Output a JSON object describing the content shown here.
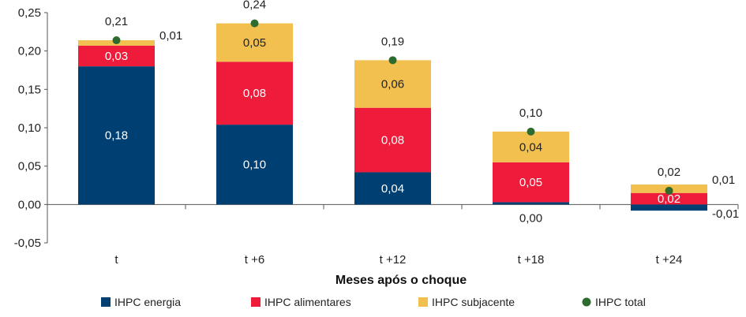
{
  "chart_data": {
    "type": "bar",
    "stacked": true,
    "categories": [
      "t",
      "t +6",
      "t +12",
      "t +18",
      "t +24"
    ],
    "series": [
      {
        "name": "IHPC energia",
        "color": "#003f72",
        "values": [
          0.18,
          0.104,
          0.042,
          0.003,
          -0.008
        ],
        "labels": [
          "0,18",
          "0,10",
          "0,04",
          "0,00",
          "-0,01"
        ]
      },
      {
        "name": "IHPC alimentares",
        "color": "#ee1c3a",
        "values": [
          0.027,
          0.082,
          0.084,
          0.052,
          0.015
        ],
        "labels": [
          "0,03",
          "0,08",
          "0,08",
          "0,05",
          "0,02"
        ]
      },
      {
        "name": "IHPC subjacente",
        "color": "#f1c04f",
        "values": [
          0.007,
          0.05,
          0.062,
          0.04,
          0.011
        ],
        "labels": [
          "0,01",
          "0,05",
          "0,06",
          "0,04",
          "0,01"
        ]
      }
    ],
    "total": {
      "name": "IHPC total",
      "color": "#2e6b2e",
      "values": [
        0.214,
        0.236,
        0.188,
        0.095,
        0.018
      ],
      "labels": [
        "0,21",
        "0,24",
        "0,19",
        "0,10",
        "0,02"
      ]
    },
    "xlabel": "Meses após o choque",
    "ylabel": "",
    "ylim": [
      -0.05,
      0.25
    ],
    "yticks": [
      -0.05,
      0,
      0.05,
      0.1,
      0.15,
      0.2,
      0.25
    ],
    "ytick_labels": [
      "-0,05",
      "0,00",
      "0,05",
      "0,10",
      "0,15",
      "0,20",
      "0,25"
    ],
    "grid": false,
    "legend_position": "bottom"
  }
}
